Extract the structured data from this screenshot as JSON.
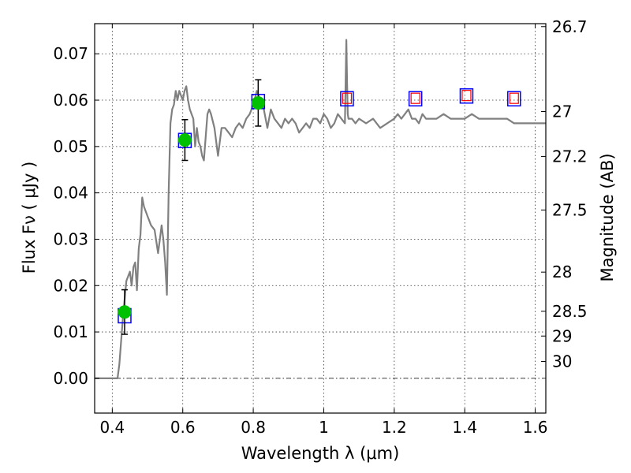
{
  "chart_data": {
    "type": "scatter",
    "xlabel": "Wavelength  λ (μm)",
    "ylabel": "Flux  Fν  ( μJy )",
    "y2label": "Magnitude (AB)",
    "xlim": [
      0.35,
      1.63
    ],
    "ylim": [
      -0.0075,
      0.0765
    ],
    "x_ticks": [
      0.4,
      0.6,
      0.8,
      1.0,
      1.2,
      1.4,
      1.6
    ],
    "x_tick_labels": [
      "0.4",
      "0.6",
      "0.8",
      "1",
      "1.2",
      "1.4",
      "1.6"
    ],
    "y_ticks": [
      0.0,
      0.01,
      0.02,
      0.03,
      0.04,
      0.05,
      0.06,
      0.07
    ],
    "y_tick_labels": [
      "0.00",
      "0.01",
      "0.02",
      "0.03",
      "0.04",
      "0.05",
      "0.06",
      "0.07"
    ],
    "y2_ticks": [
      26.7,
      27.0,
      27.2,
      27.5,
      28.0,
      28.5,
      29.0,
      30.0
    ],
    "y2_tick_labels": [
      "26.7",
      "27",
      "27.2",
      "27.5",
      "28",
      "28.5",
      "29",
      "30"
    ],
    "grid": true,
    "colors": {
      "spectrum": "#808080",
      "observed_marker": "#00c000",
      "model_box": "#0000ff",
      "predicted_box": "#ff0000",
      "errorbar": "#000000",
      "zero_line": "#000000"
    },
    "series": [
      {
        "type": "line",
        "x": [
          0.35,
          0.415,
          0.42,
          0.43,
          0.44,
          0.45,
          0.455,
          0.46,
          0.465,
          0.47,
          0.475,
          0.48,
          0.485,
          0.49,
          0.5,
          0.51,
          0.52,
          0.53,
          0.535,
          0.54,
          0.545,
          0.55,
          0.555,
          0.56,
          0.565,
          0.57,
          0.575,
          0.58,
          0.585,
          0.59,
          0.595,
          0.6,
          0.605,
          0.61,
          0.615,
          0.62,
          0.625,
          0.63,
          0.635,
          0.64,
          0.645,
          0.65,
          0.655,
          0.66,
          0.67,
          0.675,
          0.68,
          0.69,
          0.7,
          0.71,
          0.72,
          0.73,
          0.74,
          0.75,
          0.76,
          0.77,
          0.78,
          0.79,
          0.8,
          0.81,
          0.82,
          0.83,
          0.84,
          0.85,
          0.86,
          0.87,
          0.88,
          0.89,
          0.9,
          0.91,
          0.92,
          0.93,
          0.94,
          0.95,
          0.96,
          0.97,
          0.98,
          0.99,
          1.0,
          1.01,
          1.02,
          1.03,
          1.04,
          1.05,
          1.06,
          1.062,
          1.064,
          1.066,
          1.068,
          1.07,
          1.08,
          1.09,
          1.1,
          1.12,
          1.14,
          1.16,
          1.18,
          1.2,
          1.21,
          1.22,
          1.23,
          1.24,
          1.25,
          1.26,
          1.27,
          1.28,
          1.29,
          1.3,
          1.32,
          1.34,
          1.36,
          1.38,
          1.4,
          1.42,
          1.44,
          1.46,
          1.48,
          1.5,
          1.52,
          1.54,
          1.56,
          1.58,
          1.6,
          1.63
        ],
        "y": [
          0.0,
          0.0,
          0.003,
          0.013,
          0.021,
          0.023,
          0.02,
          0.024,
          0.025,
          0.019,
          0.028,
          0.031,
          0.039,
          0.037,
          0.035,
          0.033,
          0.032,
          0.027,
          0.03,
          0.033,
          0.03,
          0.025,
          0.018,
          0.04,
          0.055,
          0.058,
          0.059,
          0.062,
          0.06,
          0.062,
          0.061,
          0.06,
          0.062,
          0.063,
          0.06,
          0.058,
          0.057,
          0.056,
          0.05,
          0.054,
          0.051,
          0.05,
          0.048,
          0.047,
          0.057,
          0.058,
          0.057,
          0.054,
          0.048,
          0.054,
          0.054,
          0.053,
          0.052,
          0.054,
          0.055,
          0.054,
          0.056,
          0.057,
          0.059,
          0.062,
          0.06,
          0.058,
          0.054,
          0.058,
          0.056,
          0.055,
          0.054,
          0.056,
          0.055,
          0.056,
          0.055,
          0.053,
          0.054,
          0.055,
          0.054,
          0.056,
          0.056,
          0.055,
          0.057,
          0.056,
          0.054,
          0.055,
          0.057,
          0.056,
          0.055,
          0.064,
          0.073,
          0.064,
          0.057,
          0.056,
          0.056,
          0.055,
          0.056,
          0.055,
          0.056,
          0.054,
          0.055,
          0.056,
          0.057,
          0.056,
          0.057,
          0.058,
          0.056,
          0.056,
          0.055,
          0.057,
          0.056,
          0.056,
          0.056,
          0.057,
          0.056,
          0.056,
          0.056,
          0.057,
          0.056,
          0.056,
          0.056,
          0.056,
          0.056,
          0.055,
          0.055,
          0.055,
          0.055,
          0.055
        ]
      },
      {
        "type": "scatter",
        "marker": "circle",
        "x": [
          0.435,
          0.606,
          0.814
        ],
        "y": [
          0.0143,
          0.0514,
          0.0594
        ],
        "yerr": [
          0.0048,
          0.0044,
          0.005
        ]
      },
      {
        "type": "scatter",
        "marker": "square",
        "x": [
          0.435,
          0.606,
          0.814,
          1.066,
          1.26,
          1.405,
          1.54
        ],
        "y": [
          0.0135,
          0.0513,
          0.0597,
          0.0603,
          0.0603,
          0.0609,
          0.0603
        ]
      },
      {
        "type": "scatter",
        "marker": "square",
        "x": [
          1.066,
          1.26,
          1.405,
          1.54
        ],
        "y": [
          0.0604,
          0.0604,
          0.061,
          0.0604
        ]
      }
    ]
  }
}
